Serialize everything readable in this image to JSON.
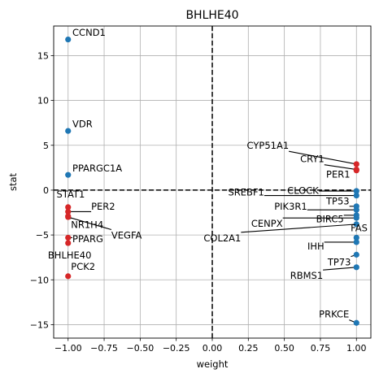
{
  "chart_data": {
    "type": "scatter",
    "title": "BHLHE40",
    "xlabel": "weight",
    "ylabel": "stat",
    "xlim": [
      -1.1,
      1.1
    ],
    "ylim": [
      -16.5,
      18.3
    ],
    "xticks": [
      -1.0,
      -0.75,
      -0.5,
      -0.25,
      0.0,
      0.25,
      0.5,
      0.75,
      1.0
    ],
    "xtick_labels": [
      "−1.00",
      "−0.75",
      "−0.50",
      "−0.25",
      "0.00",
      "0.25",
      "0.50",
      "0.75",
      "1.00"
    ],
    "yticks": [
      -15,
      -10,
      -5,
      0,
      5,
      10,
      15
    ],
    "ytick_labels": [
      "−15",
      "−10",
      "−5",
      "0",
      "5",
      "10",
      "15"
    ],
    "grid": true,
    "reference_lines": {
      "x": 0,
      "y": 0,
      "style": "dashed"
    },
    "colors": {
      "positive": "#d62728",
      "negative": "#1f77b4"
    },
    "points": [
      {
        "label": "CCND1",
        "x": -1.0,
        "y": 16.8,
        "color": "negative"
      },
      {
        "label": "VDR",
        "x": -1.0,
        "y": 6.6,
        "color": "negative"
      },
      {
        "label": "PPARGC1A",
        "x": -1.0,
        "y": 1.7,
        "color": "negative"
      },
      {
        "label": "STAT1",
        "x": -1.0,
        "y": -1.9,
        "color": "positive"
      },
      {
        "label": "PER2",
        "x": -1.0,
        "y": -2.4,
        "color": "positive"
      },
      {
        "label": "NR1H4",
        "x": -1.0,
        "y": -2.9,
        "color": "positive"
      },
      {
        "label": "VEGFA",
        "x": -1.0,
        "y": -3.0,
        "color": "positive"
      },
      {
        "label": "PPARG",
        "x": -1.0,
        "y": -5.3,
        "color": "positive"
      },
      {
        "label": "BHLHE40",
        "x": -1.0,
        "y": -5.9,
        "color": "positive"
      },
      {
        "label": "PCK2",
        "x": -1.0,
        "y": -9.6,
        "color": "positive"
      },
      {
        "label": "CYP51A1",
        "x": 1.0,
        "y": 2.9,
        "color": "positive"
      },
      {
        "label": "CRY1",
        "x": 1.0,
        "y": 2.3,
        "color": "positive"
      },
      {
        "label": "PER1",
        "x": 1.0,
        "y": 2.2,
        "color": "positive"
      },
      {
        "label": "CLOCK",
        "x": 1.0,
        "y": -0.1,
        "color": "negative"
      },
      {
        "label": "SREBF1",
        "x": 1.0,
        "y": -0.6,
        "color": "negative"
      },
      {
        "label": "TP53",
        "x": 1.0,
        "y": -1.8,
        "color": "negative"
      },
      {
        "label": "PIK3R1",
        "x": 1.0,
        "y": -2.2,
        "color": "negative"
      },
      {
        "label": "BIRC5",
        "x": 1.0,
        "y": -2.8,
        "color": "negative"
      },
      {
        "label": "CENPX",
        "x": 1.0,
        "y": -3.1,
        "color": "negative"
      },
      {
        "label": "COL2A1",
        "x": 1.0,
        "y": -3.8,
        "color": "negative"
      },
      {
        "label": "FAS",
        "x": 1.0,
        "y": -5.3,
        "color": "negative"
      },
      {
        "label": "IHH",
        "x": 1.0,
        "y": -5.8,
        "color": "negative"
      },
      {
        "label": "TP73",
        "x": 1.0,
        "y": -7.2,
        "color": "negative"
      },
      {
        "label": "RBMS1",
        "x": 1.0,
        "y": -8.6,
        "color": "negative"
      },
      {
        "label": "PRKCE",
        "x": 1.0,
        "y": -14.8,
        "color": "negative"
      }
    ],
    "annotations": [
      {
        "point": "CCND1",
        "text_x": -0.97,
        "text_y": 17.2,
        "anchor": "start",
        "leader": false
      },
      {
        "point": "VDR",
        "text_x": -0.97,
        "text_y": 7.0,
        "anchor": "start",
        "leader": false
      },
      {
        "point": "PPARGC1A",
        "text_x": -0.97,
        "text_y": 2.1,
        "anchor": "start",
        "leader": false
      },
      {
        "point": "STAT1",
        "text_x": -1.08,
        "text_y": -0.8,
        "anchor": "start",
        "leader": false
      },
      {
        "point": "PER2",
        "text_x": -0.84,
        "text_y": -2.2,
        "anchor": "start",
        "leader": true
      },
      {
        "point": "NR1H4",
        "text_x": -0.98,
        "text_y": -4.2,
        "anchor": "start",
        "leader": true
      },
      {
        "point": "VEGFA",
        "text_x": -0.7,
        "text_y": -5.4,
        "anchor": "start",
        "leader": true
      },
      {
        "point": "PPARG",
        "text_x": -0.97,
        "text_y": -5.8,
        "anchor": "start",
        "leader": true
      },
      {
        "point": "BHLHE40",
        "text_x": -1.14,
        "text_y": -7.6,
        "anchor": "start",
        "leader": false
      },
      {
        "point": "PCK2",
        "text_x": -0.98,
        "text_y": -8.9,
        "anchor": "start",
        "leader": false
      },
      {
        "point": "CYP51A1",
        "text_x": 0.24,
        "text_y": 4.6,
        "anchor": "start",
        "leader": true
      },
      {
        "point": "CRY1",
        "text_x": 0.61,
        "text_y": 3.1,
        "anchor": "start",
        "leader": true
      },
      {
        "point": "PER1",
        "text_x": 0.79,
        "text_y": 1.4,
        "anchor": "start",
        "leader": false
      },
      {
        "point": "CLOCK",
        "text_x": 0.52,
        "text_y": -0.4,
        "anchor": "start",
        "leader": true
      },
      {
        "point": "SREBF1",
        "text_x": 0.11,
        "text_y": -0.6,
        "anchor": "start",
        "leader": true
      },
      {
        "point": "TP53",
        "text_x": 0.79,
        "text_y": -1.6,
        "anchor": "start",
        "leader": true
      },
      {
        "point": "PIK3R1",
        "text_x": 0.43,
        "text_y": -2.2,
        "anchor": "start",
        "leader": true
      },
      {
        "point": "BIRC5",
        "text_x": 0.72,
        "text_y": -3.6,
        "anchor": "start",
        "leader": true
      },
      {
        "point": "CENPX",
        "text_x": 0.27,
        "text_y": -4.1,
        "anchor": "start",
        "leader": true
      },
      {
        "point": "COL2A1",
        "text_x": -0.06,
        "text_y": -5.7,
        "anchor": "start",
        "leader": true
      },
      {
        "point": "FAS",
        "text_x": 0.96,
        "text_y": -4.6,
        "anchor": "start",
        "leader": false
      },
      {
        "point": "IHH",
        "text_x": 0.66,
        "text_y": -6.6,
        "anchor": "start",
        "leader": true
      },
      {
        "point": "TP73",
        "text_x": 0.8,
        "text_y": -8.4,
        "anchor": "start",
        "leader": true
      },
      {
        "point": "RBMS1",
        "text_x": 0.54,
        "text_y": -9.9,
        "anchor": "start",
        "leader": true
      },
      {
        "point": "PRKCE",
        "text_x": 0.74,
        "text_y": -14.2,
        "anchor": "start",
        "leader": true
      }
    ]
  }
}
